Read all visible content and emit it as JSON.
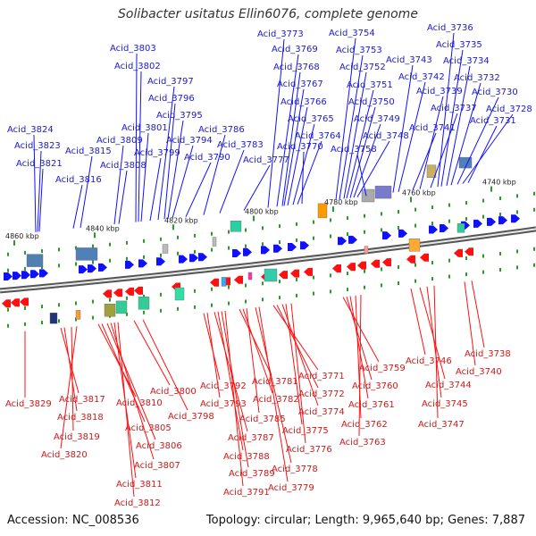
{
  "title": "Solibacter usitatus Ellin6076, complete genome",
  "accession": "Accession: NC_008536",
  "summary": "Topology: circular; Length: 9,965,640 bp; Genes: 7,887",
  "colors": {
    "forward": "#1010ff",
    "reverse": "#ff1010",
    "backbone": "#666666"
  },
  "kbp_ticks": [
    {
      "label": "4860 kbp"
    },
    {
      "label": "4840 kbp"
    },
    {
      "label": "4820 kbp"
    },
    {
      "label": "4800 kbp"
    },
    {
      "label": "4780 kbp"
    },
    {
      "label": "4760 kbp"
    },
    {
      "label": "4740 kbp"
    }
  ],
  "top_genes": [
    "Acid_3824",
    "Acid_3823",
    "Acid_3821",
    "Acid_3816",
    "Acid_3815",
    "Acid_3809",
    "Acid_3808",
    "Acid_3803",
    "Acid_3802",
    "Acid_3801",
    "Acid_3799",
    "Acid_3797",
    "Acid_3796",
    "Acid_3795",
    "Acid_3794",
    "Acid_3790",
    "Acid_3786",
    "Acid_3783",
    "Acid_3777",
    "Acid_3773",
    "Acid_3769",
    "Acid_3768",
    "Acid_3767",
    "Acid_3766",
    "Acid_3765",
    "Acid_3764",
    "Acid_3770",
    "Acid_3754",
    "Acid_3753",
    "Acid_3752",
    "Acid_3751",
    "Acid_3750",
    "Acid_3749",
    "Acid_3748",
    "Acid_3758",
    "Acid_3743",
    "Acid_3742",
    "Acid_3741",
    "Acid_3739",
    "Acid_3737",
    "Acid_3736",
    "Acid_3735",
    "Acid_3734",
    "Acid_3732",
    "Acid_3730",
    "Acid_3728",
    "Acid_3731"
  ],
  "bottom_genes": [
    "Acid_3829",
    "Acid_3817",
    "Acid_3818",
    "Acid_3819",
    "Acid_3820",
    "Acid_3810",
    "Acid_3805",
    "Acid_3806",
    "Acid_3807",
    "Acid_3811",
    "Acid_3812",
    "Acid_3800",
    "Acid_3798",
    "Acid_3792",
    "Acid_3793",
    "Acid_3787",
    "Acid_3788",
    "Acid_3789",
    "Acid_3791",
    "Acid_3781",
    "Acid_3782",
    "Acid_3785",
    "Acid_3778",
    "Acid_3779",
    "Acid_3771",
    "Acid_3772",
    "Acid_3774",
    "Acid_3775",
    "Acid_3776",
    "Acid_3759",
    "Acid_3760",
    "Acid_3761",
    "Acid_3762",
    "Acid_3763",
    "Acid_3746",
    "Acid_3744",
    "Acid_3745",
    "Acid_3747",
    "Acid_3738",
    "Acid_3740"
  ]
}
